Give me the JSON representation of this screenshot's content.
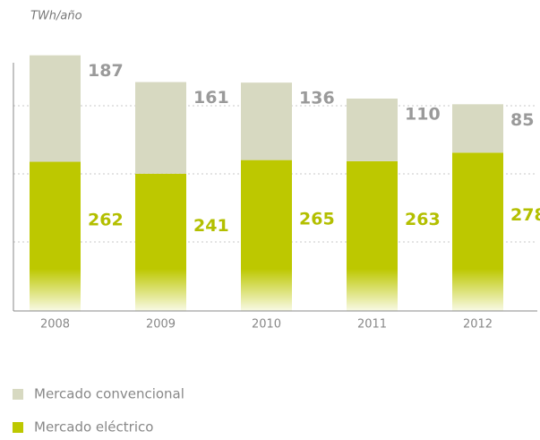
{
  "chart_data": {
    "type": "stacked-bar",
    "unit_label": "TWh/año",
    "categories": [
      "2008",
      "2009",
      "2010",
      "2011",
      "2012"
    ],
    "series": [
      {
        "name": "Mercado eléctrico",
        "color": "#bdc800",
        "label_color": "#b3bf00",
        "values": [
          262,
          241,
          265,
          263,
          278
        ]
      },
      {
        "name": "Mercado convencional",
        "color": "#d7d9c1",
        "label_color": "#9a9a9a",
        "values": [
          187,
          161,
          136,
          110,
          85
        ]
      }
    ],
    "ylim": [
      0,
      480
    ],
    "legend": "bottom-left"
  }
}
